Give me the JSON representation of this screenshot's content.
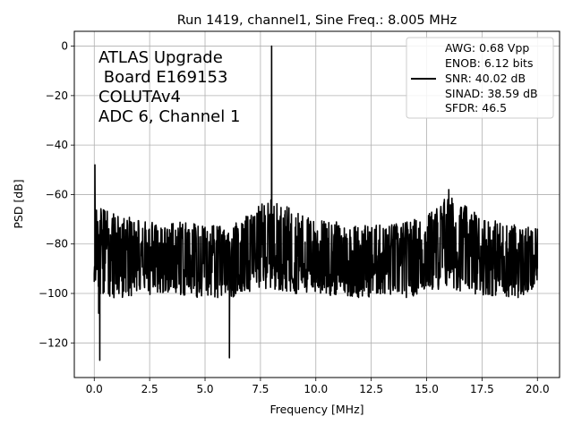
{
  "chart_data": {
    "type": "line",
    "title": "Run 1419, channel1, Sine Freq.: 8.005 MHz",
    "xlabel": "Frequency [MHz]",
    "ylabel": "PSD [dB]",
    "xlim": [
      -0.9,
      21.0
    ],
    "ylim": [
      -134,
      6
    ],
    "x_ticks": [
      "0.0",
      "2.5",
      "5.0",
      "7.5",
      "10.0",
      "12.5",
      "15.0",
      "17.5",
      "20.0"
    ],
    "x_tick_values": [
      0,
      2.5,
      5,
      7.5,
      10,
      12.5,
      15,
      17.5,
      20
    ],
    "y_ticks": [
      "0",
      "−20",
      "−40",
      "−60",
      "−80",
      "−100",
      "−120"
    ],
    "y_tick_values": [
      0,
      -20,
      -40,
      -60,
      -80,
      -100,
      -120
    ],
    "grid": true,
    "legend_placement": "top-right",
    "legend_entries": [
      "AWG: 0.68 Vpp",
      "ENOB: 6.12 bits",
      "SNR: 40.02 dB",
      "SINAD: 38.59 dB",
      "SFDR: 46.5"
    ],
    "annotation_lines": [
      "ATLAS Upgrade",
      " Board E169153",
      "COLUTAv4",
      "ADC 6, Channel 1"
    ],
    "series_color": "#000000",
    "series": [
      {
        "x": [
          0.0,
          0.03,
          0.08,
          0.2,
          0.25,
          0.4,
          1.0,
          1.8,
          2.5,
          3.05,
          3.7,
          4.5,
          5.5,
          6.0,
          6.1,
          6.5,
          7.1,
          7.5,
          7.9,
          7.96,
          8.005,
          8.05,
          8.1,
          8.6,
          9.2,
          9.9,
          10.5,
          11.0,
          12.0,
          13.0,
          13.5,
          14.0,
          14.5,
          15.0,
          15.5,
          15.8,
          16.0,
          16.2,
          16.5,
          17.0,
          17.5,
          18.0,
          18.5,
          19.0,
          19.5,
          20.0
        ],
        "values": [
          -92,
          -48,
          -90,
          -108,
          -127,
          -100,
          -95,
          -90,
          -92,
          -85,
          -93,
          -90,
          -88,
          -92,
          -126,
          -92,
          -72,
          -90,
          -88,
          -95,
          0,
          -90,
          -88,
          -94,
          -85,
          -90,
          -88,
          -92,
          -88,
          -95,
          -90,
          -88,
          -86,
          -80,
          -75,
          -62,
          -58,
          -70,
          -83,
          -85,
          -88,
          -90,
          -85,
          -88,
          -92,
          -90
        ],
        "band_envelope": {
          "x": [
            0,
            1,
            2,
            3,
            4,
            5,
            6,
            7,
            7.5,
            8,
            9,
            10,
            11,
            12,
            13,
            14,
            15,
            15.5,
            16,
            16.5,
            17,
            18,
            19,
            20
          ],
          "upper": [
            -64,
            -68,
            -70,
            -72,
            -71,
            -72,
            -73,
            -68,
            -64,
            -62,
            -66,
            -70,
            -71,
            -72,
            -72,
            -71,
            -68,
            -64,
            -60,
            -63,
            -66,
            -70,
            -72,
            -74
          ],
          "lower": [
            -100,
            -102,
            -101,
            -100,
            -101,
            -102,
            -102,
            -100,
            -98,
            -98,
            -100,
            -101,
            -101,
            -102,
            -101,
            -102,
            -100,
            -99,
            -98,
            -99,
            -100,
            -101,
            -102,
            -101
          ]
        }
      }
    ]
  }
}
